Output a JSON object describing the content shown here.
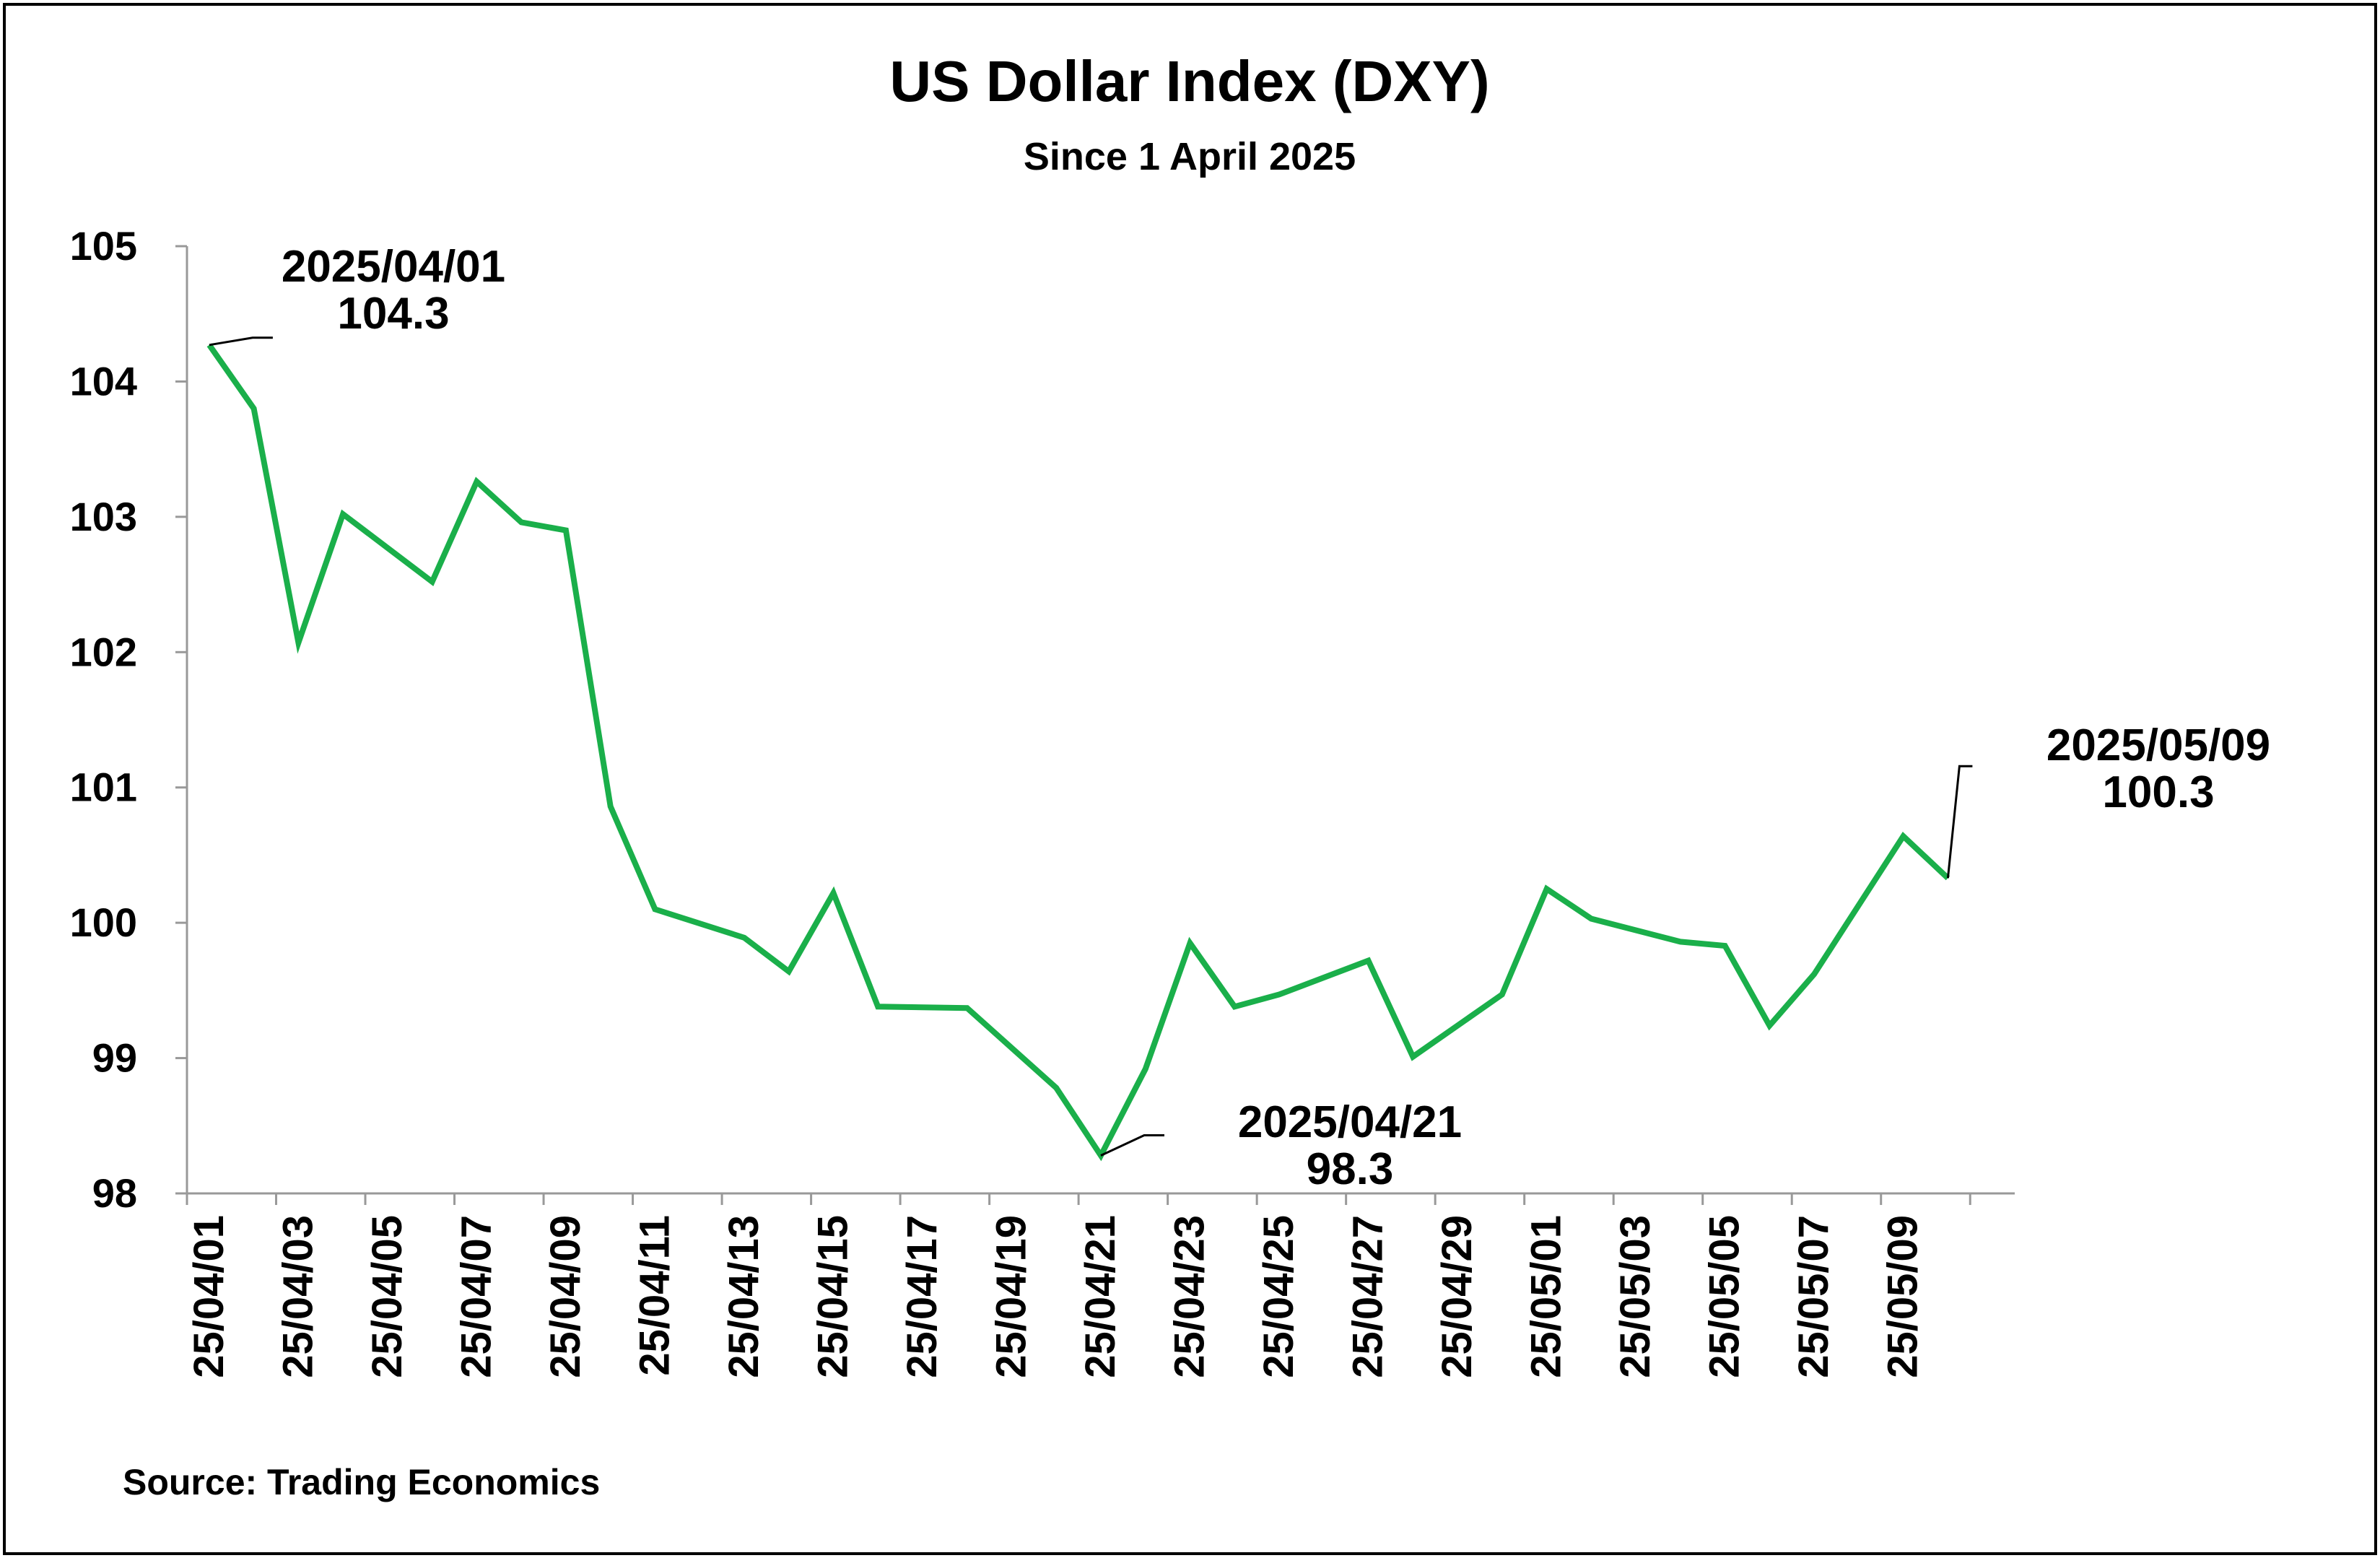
{
  "chart_data": {
    "type": "line",
    "title": "US Dollar Index (DXY)",
    "subtitle": "Since 1 April 2025",
    "source": "Source: Trading Economics",
    "xlabel": "",
    "ylabel": "",
    "ylim": [
      98,
      105
    ],
    "yticks": [
      "105",
      "104",
      "103",
      "102",
      "101",
      "100",
      "99",
      "98"
    ],
    "x_tick_labels": [
      "25/04/01",
      "25/04/03",
      "25/04/05",
      "25/04/07",
      "25/04/09",
      "25/04/11",
      "25/04/13",
      "25/04/15",
      "25/04/17",
      "25/04/19",
      "25/04/21",
      "25/04/23",
      "25/04/25",
      "25/04/27",
      "25/04/29",
      "25/05/01",
      "25/05/03",
      "25/05/05",
      "25/05/07",
      "25/05/09"
    ],
    "line_color": "#1aaf4a",
    "grid": false,
    "series": [
      {
        "name": "DXY",
        "values": [
          104.27,
          103.8,
          102.07,
          103.02,
          102.52,
          103.26,
          102.96,
          102.9,
          100.86,
          100.1,
          99.89,
          99.64,
          100.22,
          99.38,
          99.37,
          98.78,
          98.28,
          98.92,
          99.85,
          99.38,
          99.47,
          99.72,
          99.01,
          99.47,
          100.25,
          100.03,
          99.86,
          99.83,
          99.24,
          99.62,
          100.64,
          100.33
        ]
      }
    ],
    "point_x_index": [
      0,
      1,
      2,
      3,
      5,
      6,
      7,
      8,
      9,
      10,
      12,
      13,
      14,
      15,
      17,
      19,
      20,
      21,
      22,
      23,
      24,
      26,
      27,
      29,
      30,
      31,
      33,
      34,
      35,
      36,
      38,
      39
    ],
    "annotations": [
      {
        "date": "2025/04/01",
        "value": "104.3",
        "point_index": 0
      },
      {
        "date": "2025/04/21",
        "value": "98.3",
        "point_index": 16
      },
      {
        "date": "2025/05/09",
        "value": "100.3",
        "point_index": 31
      }
    ]
  }
}
